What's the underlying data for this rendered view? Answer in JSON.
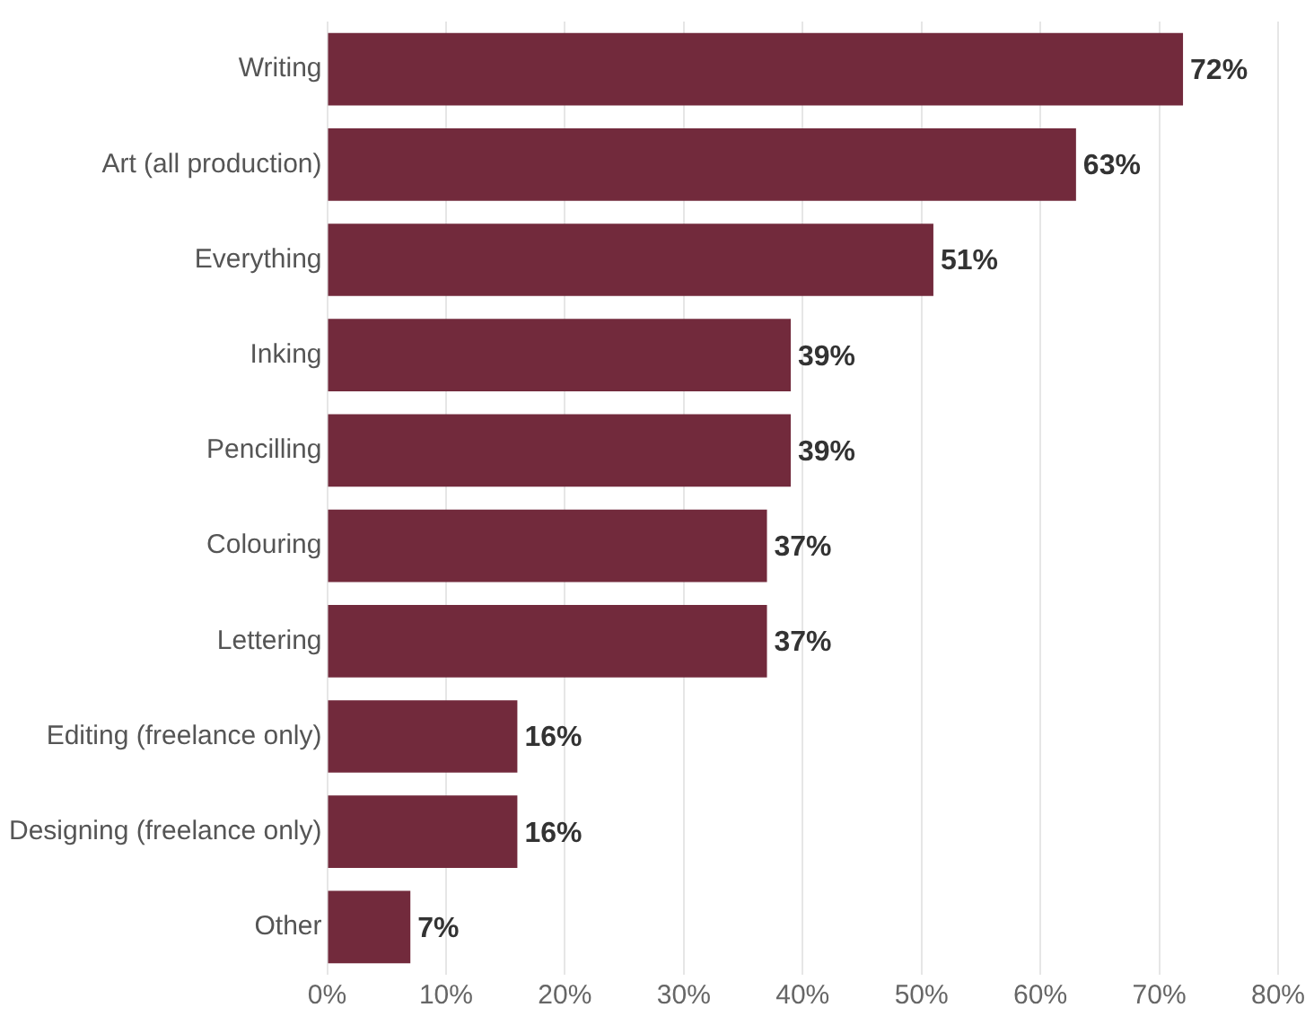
{
  "chart_data": {
    "type": "bar",
    "orientation": "horizontal",
    "categories": [
      "Writing",
      "Art (all production)",
      "Everything",
      "Inking",
      "Pencilling",
      "Colouring",
      "Lettering",
      "Editing (freelance only)",
      "Designing (freelance only)",
      "Other"
    ],
    "values": [
      72,
      63,
      51,
      39,
      39,
      37,
      37,
      16,
      16,
      7
    ],
    "value_labels": [
      "72%",
      "63%",
      "51%",
      "39%",
      "39%",
      "37%",
      "37%",
      "16%",
      "16%",
      "7%"
    ],
    "color": "#722a3c",
    "xlim": [
      0,
      80
    ],
    "xticks": [
      {
        "value": 0,
        "label": "0%"
      },
      {
        "value": 10,
        "label": "10%"
      },
      {
        "value": 20,
        "label": "20%"
      },
      {
        "value": 30,
        "label": "30%"
      },
      {
        "value": 40,
        "label": "40%"
      },
      {
        "value": 50,
        "label": "50%"
      },
      {
        "value": 60,
        "label": "60%"
      },
      {
        "value": 70,
        "label": "70%"
      },
      {
        "value": 80,
        "label": "80%"
      }
    ],
    "grid": "x",
    "legend": false
  }
}
